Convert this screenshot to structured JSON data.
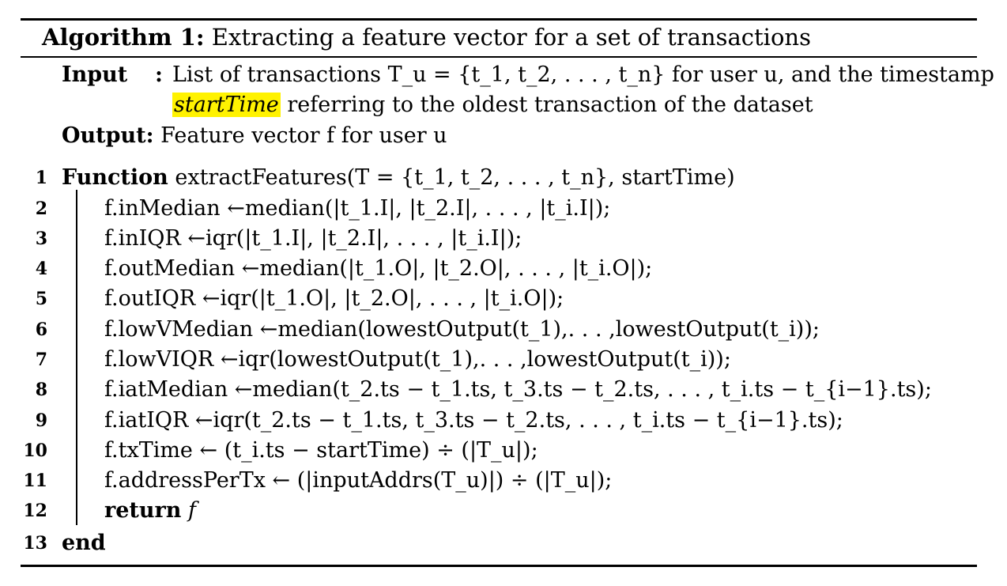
{
  "caption": {
    "label": "Algorithm 1:",
    "text": "Extracting a feature vector for a set of transactions"
  },
  "input": {
    "label": "Input",
    "sep": ":",
    "line1": "List of transactions T_u = {t_1, t_2, . . . , t_n} for user u, and the timestamp",
    "highlight": "startTime",
    "line2": "referring to the oldest transaction of the dataset"
  },
  "output": {
    "label": "Output:",
    "text": "Feature vector f for user u"
  },
  "lines": [
    {
      "no": "1",
      "kw": "Function",
      "text": "extractFeatures(T = {t_1, t_2, . . . , t_n}, startTime)"
    },
    {
      "no": "2",
      "text": "f.inMedian ←median(|t_1.I|, |t_2.I|, . . . , |t_i.I|);"
    },
    {
      "no": "3",
      "text": "f.inIQR ←iqr(|t_1.I|, |t_2.I|, . . . , |t_i.I|);"
    },
    {
      "no": "4",
      "text": "f.outMedian ←median(|t_1.O|, |t_2.O|, . . . , |t_i.O|);"
    },
    {
      "no": "5",
      "text": "f.outIQR ←iqr(|t_1.O|, |t_2.O|, . . . , |t_i.O|);"
    },
    {
      "no": "6",
      "text": "f.lowVMedian ←median(lowestOutput(t_1),. . . ,lowestOutput(t_i));"
    },
    {
      "no": "7",
      "text": "f.lowVIQR ←iqr(lowestOutput(t_1),. . . ,lowestOutput(t_i));"
    },
    {
      "no": "8",
      "text": "f.iatMedian ←median(t_2.ts − t_1.ts, t_3.ts − t_2.ts, . . . , t_i.ts − t_{i−1}.ts);"
    },
    {
      "no": "9",
      "text": "f.iatIQR ←iqr(t_2.ts − t_1.ts, t_3.ts − t_2.ts, . . . , t_i.ts − t_{i−1}.ts);"
    },
    {
      "no": "10",
      "text": "f.txTime ← (t_i.ts − startTime) ÷ (|T_u|);"
    },
    {
      "no": "11",
      "text": "f.addressPerTx ← (|inputAddrs(T_u)|) ÷ (|T_u|);"
    },
    {
      "no": "12",
      "kw": "return",
      "text": "f"
    },
    {
      "no": "13",
      "kw": "end",
      "text": ""
    }
  ]
}
